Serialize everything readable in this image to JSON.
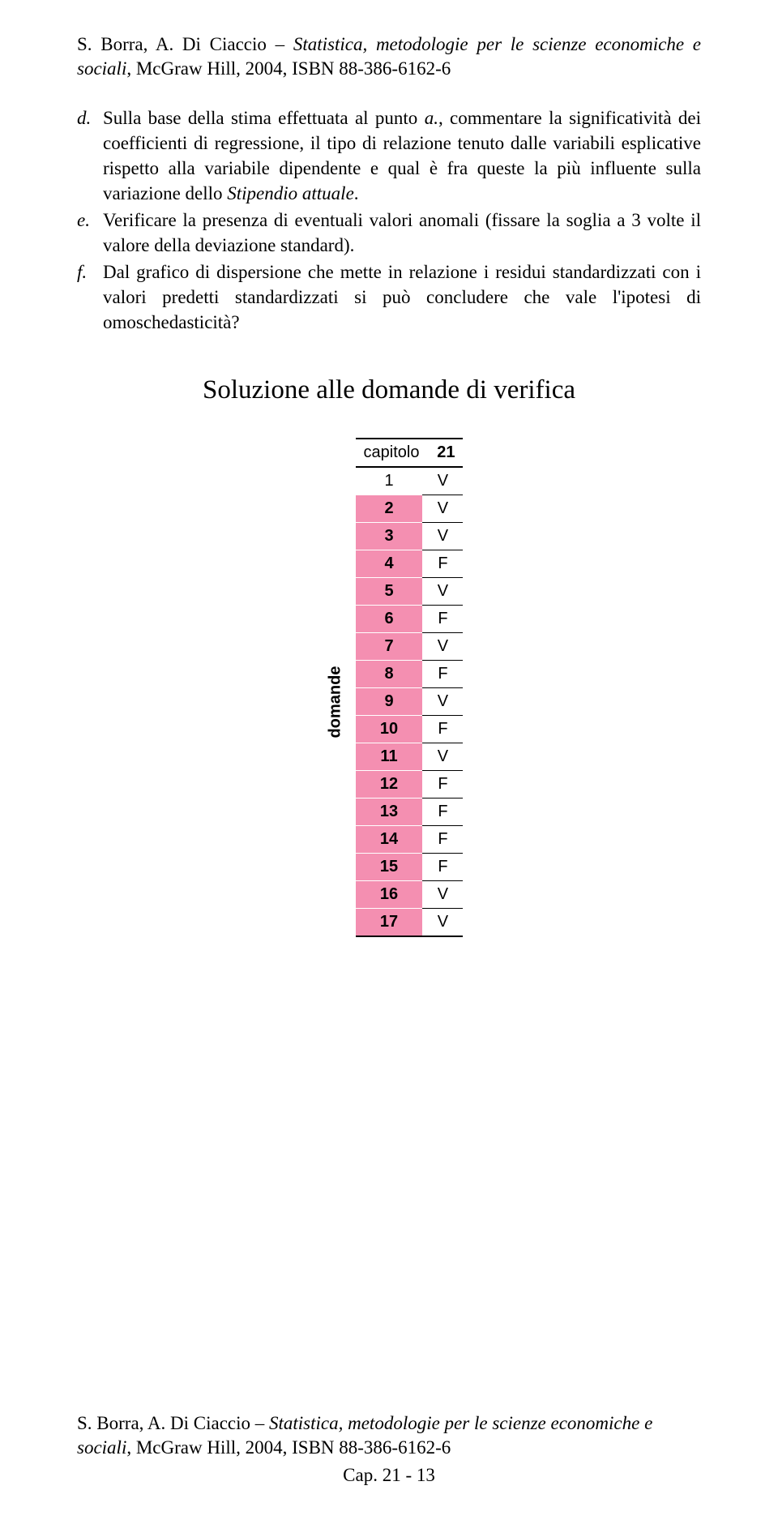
{
  "header_ref": {
    "authors": "S. Borra, A. Di Ciaccio – ",
    "title_italic": "Statistica, metodologie per le scienze economiche e sociali",
    "publisher": ", McGraw Hill, 2004, ISBN 88-386-6162-6"
  },
  "list": {
    "items": [
      {
        "marker": "d.",
        "text_parts": [
          "Sulla base della stima effettuata al punto ",
          "a.",
          ", commentare la significatività dei coefficienti di regressione, il tipo di relazione tenuto dalle variabili esplicative rispetto alla variabile dipendente e qual è fra queste la più influente sulla variazione dello ",
          "Stipendio attuale",
          "."
        ]
      },
      {
        "marker": "e.",
        "text_parts": [
          "Verificare la presenza di eventuali valori anomali (fissare la soglia a 3 volte il valore della deviazione standard)."
        ]
      },
      {
        "marker": "f.",
        "text_parts": [
          "Dal grafico di dispersione che mette in relazione i residui standardizzati con i valori predetti standardizzati si può concludere che vale l'ipotesi di omoschedasticità?"
        ]
      }
    ]
  },
  "section_title": "Soluzione alle domande di verifica",
  "table": {
    "header": {
      "label": "capitolo",
      "num": "21"
    },
    "side_label": "domande",
    "rows": [
      {
        "n": "1",
        "a": "V"
      },
      {
        "n": "2",
        "a": "V"
      },
      {
        "n": "3",
        "a": "V"
      },
      {
        "n": "4",
        "a": "F"
      },
      {
        "n": "5",
        "a": "V"
      },
      {
        "n": "6",
        "a": "F"
      },
      {
        "n": "7",
        "a": "V"
      },
      {
        "n": "8",
        "a": "F"
      },
      {
        "n": "9",
        "a": "V"
      },
      {
        "n": "10",
        "a": "F"
      },
      {
        "n": "11",
        "a": "V"
      },
      {
        "n": "12",
        "a": "F"
      },
      {
        "n": "13",
        "a": "F"
      },
      {
        "n": "14",
        "a": "F"
      },
      {
        "n": "15",
        "a": "F"
      },
      {
        "n": "16",
        "a": "V"
      },
      {
        "n": "17",
        "a": "V"
      }
    ],
    "colors": {
      "pink": "#f48fb1",
      "border": "#000000"
    }
  },
  "footer": {
    "authors": "S. Borra, A. Di Ciaccio – ",
    "title_italic": "Statistica, metodologie per le scienze economiche e sociali",
    "publisher": ", McGraw Hill, 2004, ISBN 88-386-6162-6",
    "page": "Cap. 21 - 13"
  }
}
